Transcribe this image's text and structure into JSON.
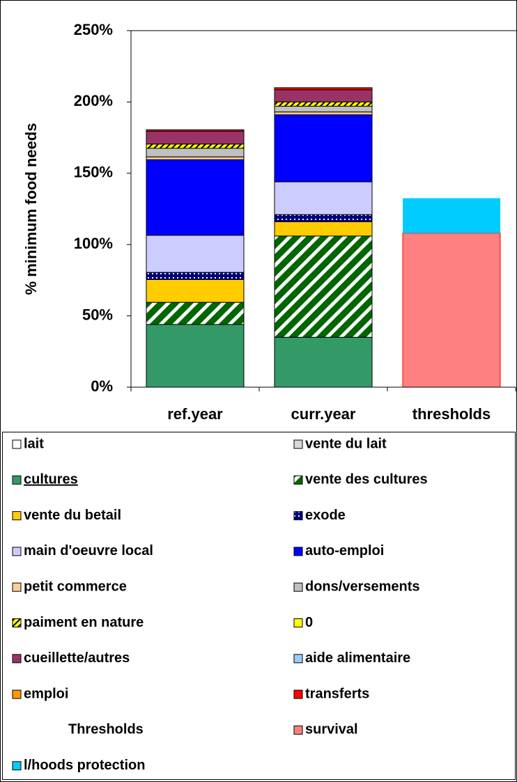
{
  "chart_data": {
    "type": "stacked_bar",
    "ylabel": "% minimum food needs",
    "categories": [
      "ref.year",
      "curr.year",
      "thresholds"
    ],
    "ylim": [
      0,
      250
    ],
    "yticks": [
      {
        "value": 0,
        "label": "0%"
      },
      {
        "value": 50,
        "label": "50%"
      },
      {
        "value": 100,
        "label": "100%"
      },
      {
        "value": 150,
        "label": "150%"
      },
      {
        "value": 200,
        "label": "200%"
      },
      {
        "value": 250,
        "label": "250%"
      }
    ],
    "legend_heading": "Thresholds",
    "series": [
      {
        "name": "lait",
        "color": "#ffffff",
        "values": [
          0,
          0,
          null
        ]
      },
      {
        "name": "vente du lait",
        "color": "#d9d9d9",
        "values": [
          0,
          0,
          null
        ]
      },
      {
        "name": "cultures",
        "color": "#339966",
        "values": [
          44,
          35,
          null
        ]
      },
      {
        "name": "vente des cultures",
        "color": "#006600",
        "hatch": "diagonal",
        "values": [
          15.5,
          71,
          null
        ]
      },
      {
        "name": "vente du betail",
        "color": "#ffcc00",
        "values": [
          16,
          10,
          null
        ]
      },
      {
        "name": "exode",
        "color": "#000080",
        "hatch": "dots",
        "values": [
          5,
          5,
          null
        ]
      },
      {
        "name": "main d'oeuvre local",
        "color": "#ccccff",
        "values": [
          26,
          23,
          null
        ]
      },
      {
        "name": "auto-emploi",
        "color": "#0000ff",
        "values": [
          53,
          47,
          null
        ]
      },
      {
        "name": "petit commerce",
        "color": "#ffcc99",
        "values": [
          2,
          2,
          null
        ]
      },
      {
        "name": "dons/versements",
        "color": "#c0c0c0",
        "values": [
          6,
          4,
          null
        ]
      },
      {
        "name": "paiment en nature",
        "color": "#ffff00",
        "hatch": "diagonal-dark",
        "values": [
          3,
          3,
          null
        ]
      },
      {
        "name": "0",
        "color": "#ffff00",
        "values": [
          0,
          0,
          null
        ]
      },
      {
        "name": "cueillette/autres",
        "color": "#993366",
        "values": [
          9,
          8.5,
          null
        ]
      },
      {
        "name": "aide alimentaire",
        "color": "#99ccff",
        "values": [
          0,
          0,
          null
        ]
      },
      {
        "name": "emploi",
        "color": "#ff9900",
        "values": [
          0,
          0,
          null
        ]
      },
      {
        "name": "transferts",
        "color": "#ff0000",
        "values": [
          1,
          1.5,
          null
        ]
      },
      {
        "name": "survival",
        "color": "#ff8080",
        "edgecolor": "#ff0000",
        "values": [
          null,
          null,
          108
        ]
      },
      {
        "name": "l/hoods protection",
        "color": "#00ccff",
        "values": [
          null,
          null,
          24.5
        ]
      }
    ]
  }
}
